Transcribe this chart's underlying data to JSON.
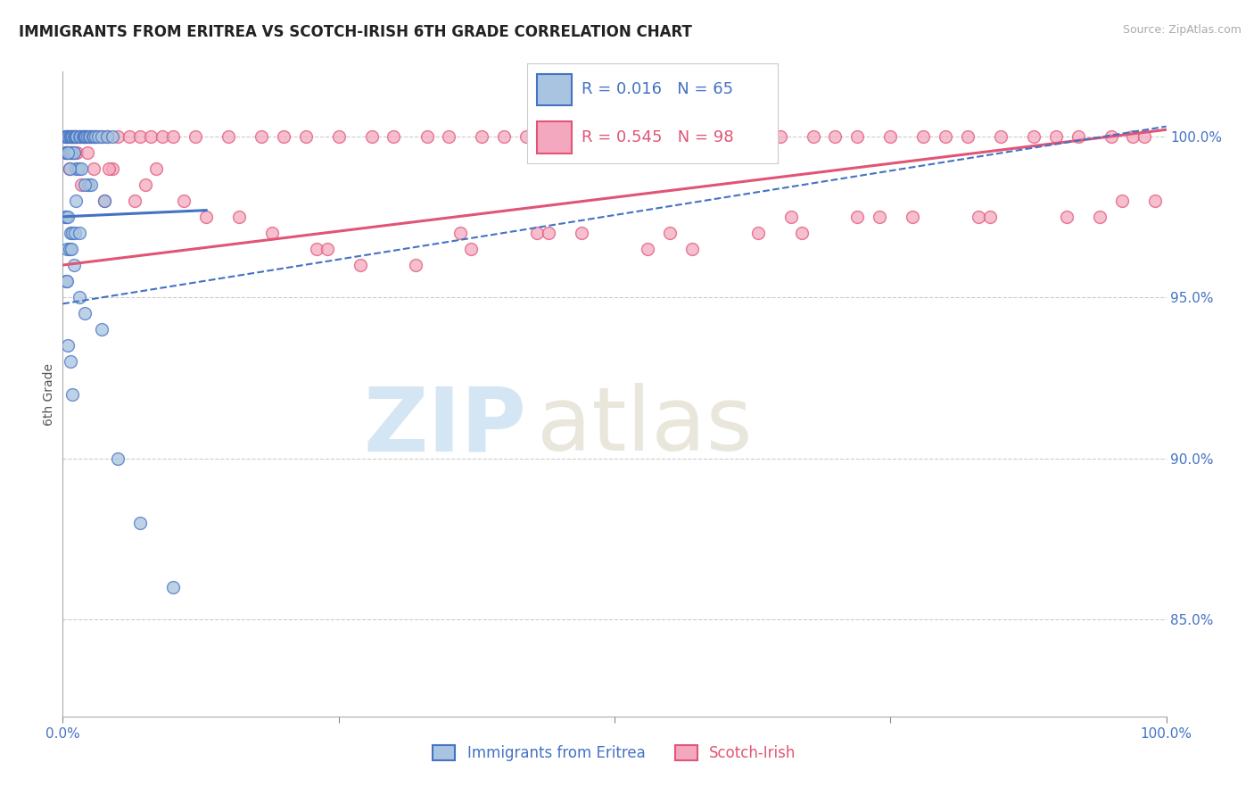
{
  "title": "IMMIGRANTS FROM ERITREA VS SCOTCH-IRISH 6TH GRADE CORRELATION CHART",
  "source_text": "Source: ZipAtlas.com",
  "ylabel": "6th Grade",
  "xlim": [
    0.0,
    100.0
  ],
  "ylim": [
    82.0,
    102.0
  ],
  "yticks": [
    85.0,
    90.0,
    95.0,
    100.0
  ],
  "xticks": [
    0.0,
    25.0,
    50.0,
    75.0,
    100.0
  ],
  "ytick_labels": [
    "85.0%",
    "90.0%",
    "95.0%",
    "100.0%"
  ],
  "color_blue": "#a8c4e0",
  "color_pink": "#f4a8c0",
  "color_blue_line": "#4472c4",
  "color_pink_line": "#e05575",
  "color_axis_text": "#4472c4",
  "legend_R_blue": "R = 0.016",
  "legend_N_blue": "N = 65",
  "legend_R_pink": "R = 0.545",
  "legend_N_pink": "N = 98",
  "legend_label_blue": "Immigrants from Eritrea",
  "legend_label_pink": "Scotch-Irish",
  "blue_x": [
    0.2,
    0.3,
    0.4,
    0.5,
    0.6,
    0.7,
    0.8,
    0.9,
    1.0,
    1.1,
    1.2,
    1.3,
    1.5,
    1.6,
    1.8,
    1.9,
    2.0,
    2.1,
    2.2,
    2.4,
    2.5,
    2.7,
    2.8,
    3.0,
    3.2,
    3.5,
    4.0,
    4.5,
    0.3,
    0.4,
    0.6,
    0.8,
    1.0,
    1.2,
    1.4,
    1.7,
    2.3,
    2.6,
    3.8,
    0.2,
    0.3,
    0.5,
    0.7,
    0.9,
    1.1,
    0.4,
    0.6,
    0.8,
    1.0,
    0.3,
    0.4,
    1.5,
    2.0,
    3.5,
    0.5,
    0.7,
    0.9,
    5.0,
    7.0,
    10.0,
    2.0,
    1.5,
    0.6,
    1.2,
    0.5
  ],
  "blue_y": [
    100.0,
    100.0,
    100.0,
    100.0,
    100.0,
    100.0,
    100.0,
    100.0,
    100.0,
    100.0,
    100.0,
    100.0,
    100.0,
    100.0,
    100.0,
    100.0,
    100.0,
    100.0,
    100.0,
    100.0,
    100.0,
    100.0,
    100.0,
    100.0,
    100.0,
    100.0,
    100.0,
    100.0,
    99.5,
    99.5,
    99.5,
    99.5,
    99.5,
    99.0,
    99.0,
    99.0,
    98.5,
    98.5,
    98.0,
    97.5,
    97.5,
    97.5,
    97.0,
    97.0,
    97.0,
    96.5,
    96.5,
    96.5,
    96.0,
    95.5,
    95.5,
    95.0,
    94.5,
    94.0,
    93.5,
    93.0,
    92.0,
    90.0,
    88.0,
    86.0,
    98.5,
    97.0,
    99.0,
    98.0,
    99.5
  ],
  "pink_x": [
    0.3,
    0.5,
    0.7,
    0.9,
    1.0,
    1.2,
    1.5,
    1.8,
    2.0,
    2.5,
    3.0,
    3.5,
    4.0,
    5.0,
    6.0,
    7.0,
    8.0,
    9.0,
    10.0,
    12.0,
    15.0,
    18.0,
    20.0,
    22.0,
    25.0,
    28.0,
    30.0,
    33.0,
    35.0,
    38.0,
    40.0,
    42.0,
    45.0,
    48.0,
    50.0,
    52.0,
    55.0,
    58.0,
    60.0,
    62.0,
    65.0,
    68.0,
    70.0,
    72.0,
    75.0,
    78.0,
    80.0,
    82.0,
    85.0,
    88.0,
    90.0,
    92.0,
    95.0,
    97.0,
    98.0,
    0.4,
    0.8,
    1.3,
    2.2,
    4.5,
    7.5,
    11.0,
    16.0,
    19.0,
    23.0,
    27.0,
    32.0,
    37.0,
    43.0,
    47.0,
    53.0,
    57.0,
    63.0,
    67.0,
    72.0,
    77.0,
    83.0,
    0.6,
    1.7,
    3.8,
    6.5,
    13.0,
    24.0,
    36.0,
    44.0,
    55.0,
    66.0,
    74.0,
    84.0,
    91.0,
    94.0,
    96.0,
    99.0,
    0.2,
    1.0,
    2.8,
    4.2,
    8.5
  ],
  "pink_y": [
    100.0,
    100.0,
    100.0,
    100.0,
    100.0,
    100.0,
    100.0,
    100.0,
    100.0,
    100.0,
    100.0,
    100.0,
    100.0,
    100.0,
    100.0,
    100.0,
    100.0,
    100.0,
    100.0,
    100.0,
    100.0,
    100.0,
    100.0,
    100.0,
    100.0,
    100.0,
    100.0,
    100.0,
    100.0,
    100.0,
    100.0,
    100.0,
    100.0,
    100.0,
    100.0,
    100.0,
    100.0,
    100.0,
    100.0,
    100.0,
    100.0,
    100.0,
    100.0,
    100.0,
    100.0,
    100.0,
    100.0,
    100.0,
    100.0,
    100.0,
    100.0,
    100.0,
    100.0,
    100.0,
    100.0,
    99.5,
    99.5,
    99.5,
    99.5,
    99.0,
    98.5,
    98.0,
    97.5,
    97.0,
    96.5,
    96.0,
    96.0,
    96.5,
    97.0,
    97.0,
    96.5,
    96.5,
    97.0,
    97.0,
    97.5,
    97.5,
    97.5,
    99.0,
    98.5,
    98.0,
    98.0,
    97.5,
    96.5,
    97.0,
    97.0,
    97.0,
    97.5,
    97.5,
    97.5,
    97.5,
    97.5,
    98.0,
    98.0,
    99.5,
    99.5,
    99.0,
    99.0,
    99.0
  ],
  "blue_reg_x0": 0.0,
  "blue_reg_y0": 97.5,
  "blue_reg_x1": 13.0,
  "blue_reg_y1": 97.7,
  "blue_dash_x0": 0.0,
  "blue_dash_y0": 94.8,
  "blue_dash_x1": 100.0,
  "blue_dash_y1": 100.3,
  "pink_reg_x0": 0.0,
  "pink_reg_y0": 96.0,
  "pink_reg_x1": 100.0,
  "pink_reg_y1": 100.2,
  "watermark_zip": "ZIP",
  "watermark_atlas": "atlas",
  "background_color": "#ffffff",
  "grid_color": "#cccccc",
  "title_fontsize": 12,
  "axis_label_color": "#4472c4",
  "marker_size": 100
}
